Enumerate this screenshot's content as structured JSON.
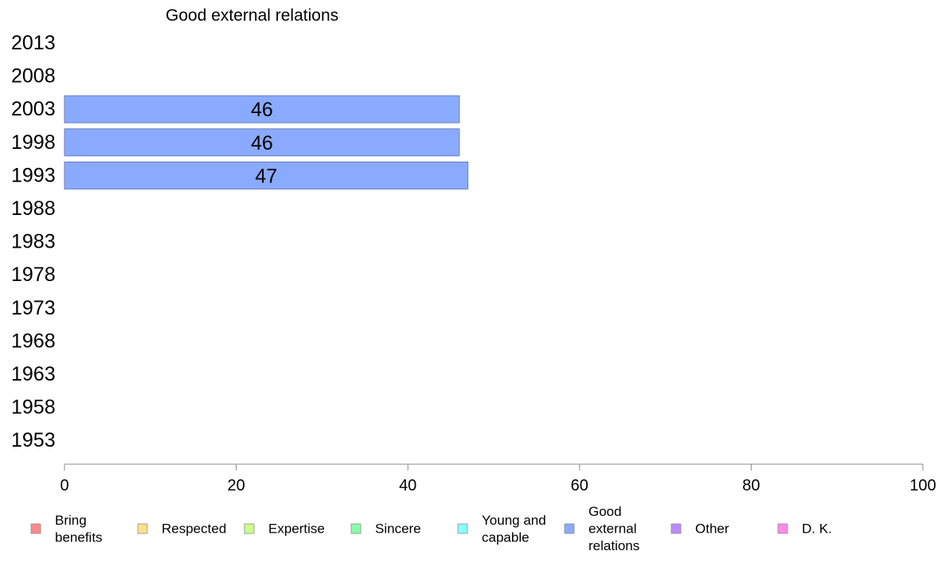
{
  "chart_data": {
    "type": "bar",
    "orientation": "horizontal",
    "title": "Good external relations",
    "categories": [
      "2013",
      "2008",
      "2003",
      "1998",
      "1993",
      "1988",
      "1983",
      "1978",
      "1973",
      "1968",
      "1963",
      "1958",
      "1953"
    ],
    "series": [
      {
        "name": "Good external relations",
        "color": "#8aaaff",
        "values": [
          null,
          null,
          46,
          46,
          47,
          null,
          null,
          null,
          null,
          null,
          null,
          null,
          null
        ]
      }
    ],
    "xlim": [
      0,
      100
    ],
    "xticks": [
      0,
      20,
      40,
      60,
      80,
      100
    ],
    "grid": false,
    "legend_position": "bottom",
    "legend": [
      {
        "label": "Bring benefits",
        "lines": [
          "Bring",
          "benefits"
        ],
        "color": "#ff8a8a"
      },
      {
        "label": "Respected",
        "lines": [
          "Respected"
        ],
        "color": "#ffe08a"
      },
      {
        "label": "Expertise",
        "lines": [
          "Expertise"
        ],
        "color": "#ccff8a"
      },
      {
        "label": "Sincere",
        "lines": [
          "Sincere"
        ],
        "color": "#8affaa"
      },
      {
        "label": "Young and capable",
        "lines": [
          "Young and",
          "capable"
        ],
        "color": "#8affff"
      },
      {
        "label": "Good external relations",
        "lines": [
          "Good",
          "external",
          "relations"
        ],
        "color": "#8aaaff"
      },
      {
        "label": "Other",
        "lines": [
          "Other"
        ],
        "color": "#bb8aff"
      },
      {
        "label": "D. K.",
        "lines": [
          "D. K."
        ],
        "color": "#ff8aee"
      }
    ]
  }
}
